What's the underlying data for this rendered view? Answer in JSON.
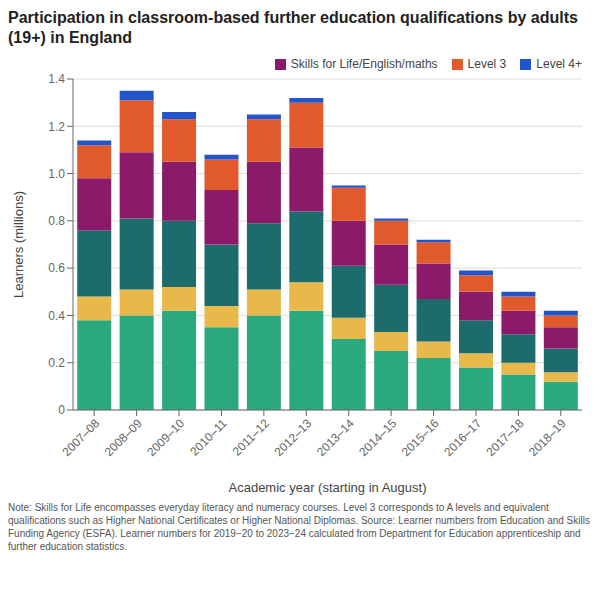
{
  "chart_data": {
    "type": "bar",
    "stacked": true,
    "title": "Participation in classroom-based further education qualifications by adults (19+) in England",
    "xlabel": "Academic year (starting in August)",
    "ylabel": "Learners (millions)",
    "categories": [
      "2007–08",
      "2008–09",
      "2009–10",
      "2010–11",
      "2011–12",
      "2012–13",
      "2013–14",
      "2014–15",
      "2015–16",
      "2016–17",
      "2017–18",
      "2018–19"
    ],
    "series": [
      {
        "color": "#2ca87f",
        "values": [
          0.38,
          0.4,
          0.42,
          0.35,
          0.4,
          0.42,
          0.3,
          0.25,
          0.22,
          0.18,
          0.15,
          0.12
        ]
      },
      {
        "color": "#e8b84b",
        "values": [
          0.1,
          0.11,
          0.1,
          0.09,
          0.11,
          0.12,
          0.09,
          0.08,
          0.07,
          0.06,
          0.05,
          0.04
        ]
      },
      {
        "color": "#1d6b6b",
        "values": [
          0.28,
          0.3,
          0.28,
          0.26,
          0.28,
          0.3,
          0.22,
          0.2,
          0.18,
          0.14,
          0.12,
          0.1
        ]
      },
      {
        "name": "Skills for Life/English/maths",
        "color": "#8b1a6b",
        "values": [
          0.22,
          0.28,
          0.25,
          0.23,
          0.26,
          0.27,
          0.19,
          0.17,
          0.15,
          0.12,
          0.1,
          0.09
        ]
      },
      {
        "name": "Level 3",
        "color": "#e05a2b",
        "values": [
          0.14,
          0.22,
          0.18,
          0.13,
          0.18,
          0.19,
          0.14,
          0.1,
          0.09,
          0.07,
          0.06,
          0.05
        ]
      },
      {
        "name": "Level 4+",
        "color": "#2255cc",
        "values": [
          0.02,
          0.04,
          0.03,
          0.02,
          0.02,
          0.02,
          0.01,
          0.01,
          0.01,
          0.02,
          0.02,
          0.02
        ]
      }
    ],
    "ylim": [
      0,
      1.4
    ],
    "yticks": [
      0,
      0.2,
      0.4,
      0.6,
      0.8,
      {
        "value": 1,
        "label": "1.0"
      },
      1.2,
      1.4
    ],
    "grid": true,
    "legend": "upper right",
    "annotations": [
      "Note: Skills for Life encompasses everyday literacy and numeracy courses. Level 3 corresponds to A levels and equivalent qualifications such as Higher National Certificates or Higher National Diplomas. Source: Learner numbers from Education and Skills Funding Agency (ESFA). Learner numbers for 2019−20 to 2023−24 calculated from Department for Education apprenticeship and further education statistics."
    ]
  }
}
